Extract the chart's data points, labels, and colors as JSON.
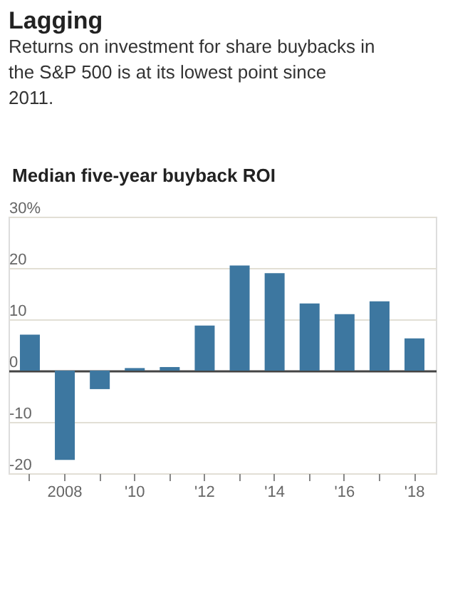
{
  "chart_data": {
    "type": "bar",
    "title": "Lagging",
    "subtitle": "Returns on investment for share buybacks in the S&P 500 is at its lowest point since 2011.",
    "ylabel": "Median five-year buyback ROI",
    "categories": [
      null,
      "2008",
      null,
      "'10",
      null,
      "'12",
      null,
      "'14",
      null,
      "'16",
      null,
      "'18"
    ],
    "values": [
      7.0,
      -17.4,
      -3.6,
      0.5,
      0.7,
      8.8,
      20.5,
      19.0,
      13.1,
      11.0,
      13.5,
      6.3
    ],
    "color": "#3d77a0",
    "ylim": [
      -20,
      30
    ],
    "yticks": [
      -20,
      -10,
      0,
      10,
      20,
      {
        "value": 30,
        "label": "30%"
      }
    ],
    "grid": "y"
  }
}
